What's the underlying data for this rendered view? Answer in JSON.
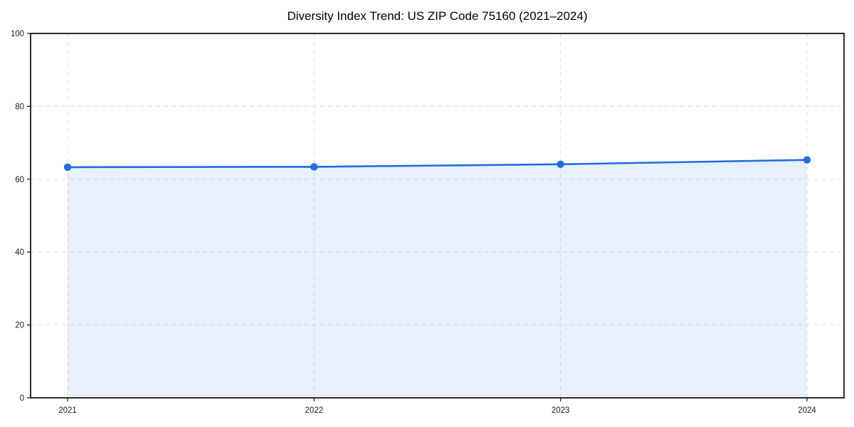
{
  "chart_data": {
    "type": "area",
    "title": "Diversity Index Trend: US ZIP Code 75160 (2021–2024)",
    "categories": [
      "2021",
      "2022",
      "2023",
      "2024"
    ],
    "series": [
      {
        "name": "Diversity Index",
        "values": [
          63.3,
          63.4,
          64.1,
          65.3
        ]
      }
    ],
    "xlabel": "",
    "ylabel": "",
    "ylim": [
      0,
      100
    ],
    "yticks": [
      0,
      20,
      40,
      60,
      80,
      100
    ],
    "grid": true,
    "grid_style": "dashed",
    "legend": false,
    "colors": {
      "line": "#1f6de3",
      "marker": "#1f6de3",
      "area_fill": "rgba(31,109,227,0.10)",
      "grid": "#dedede",
      "axis": "#1a1a1a",
      "background": "#ffffff"
    }
  }
}
